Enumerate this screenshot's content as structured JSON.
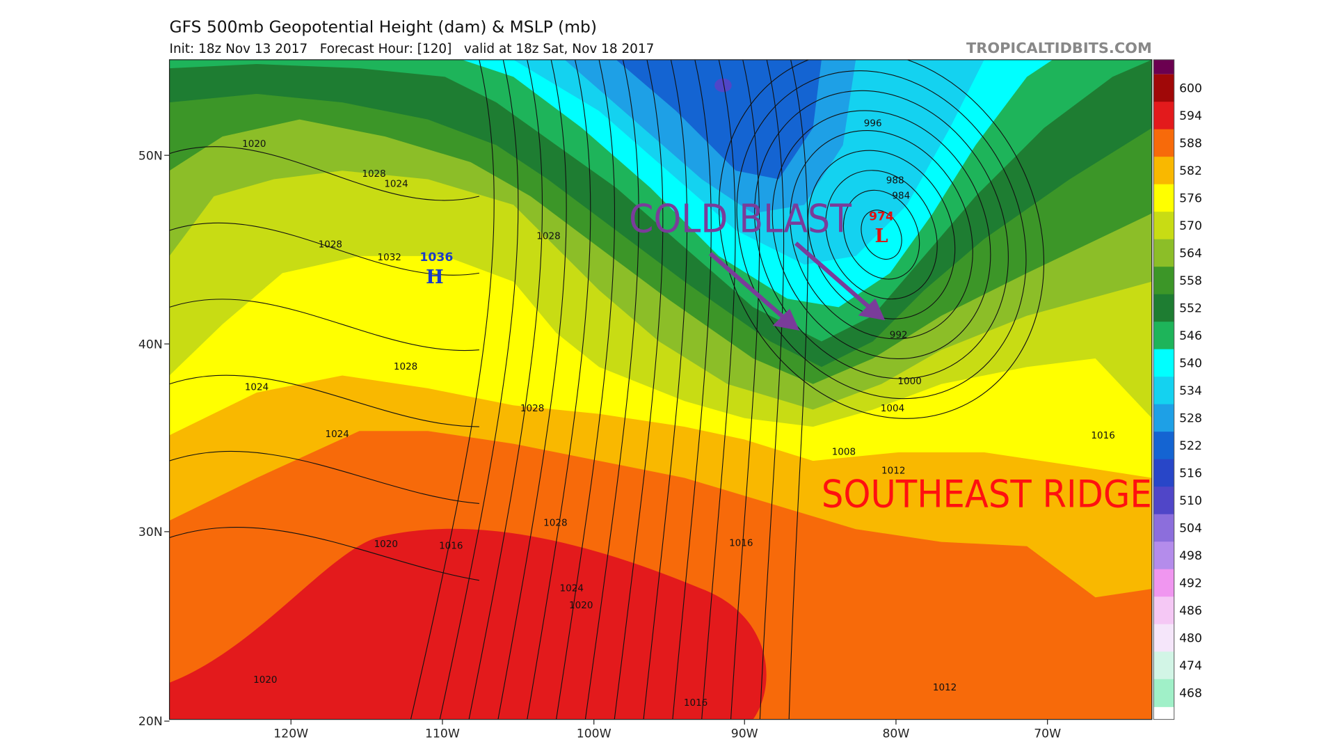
{
  "header": {
    "title": "GFS 500mb Geopotential Height (dam) & MSLP (mb)",
    "subtitle": "Init: 18z Nov 13 2017   Forecast Hour: [120]   valid at 18z Sat, Nov 18 2017",
    "credit": "TROPICALTIDBITS.COM"
  },
  "map": {
    "lat_labels": [
      "50N",
      "40N",
      "30N",
      "20N"
    ],
    "lon_labels": [
      "120W",
      "110W",
      "100W",
      "90W",
      "80W",
      "70W"
    ],
    "annotations": {
      "cold_blast": "COLD BLAST",
      "southeast_ridge": "SOUTHEAST RIDGE"
    },
    "low": {
      "pressure": "974",
      "symbol": "L"
    },
    "high": {
      "pressure": "1036",
      "symbol": "H"
    },
    "isobar_labels": [
      "1020",
      "1028",
      "1024",
      "1028",
      "1032",
      "1028",
      "1024",
      "1024",
      "1028",
      "1028",
      "1028",
      "1020",
      "1016",
      "1024",
      "1020",
      "1020",
      "1016",
      "1016",
      "996",
      "988",
      "984",
      "992",
      "1000",
      "1004",
      "1008",
      "1012",
      "1016",
      "1012"
    ]
  },
  "colorbar": {
    "levels": [
      {
        "label": "600",
        "color": "#a00808"
      },
      {
        "label": "594",
        "color": "#e31a1c"
      },
      {
        "label": "588",
        "color": "#f76a0a"
      },
      {
        "label": "582",
        "color": "#f9b800"
      },
      {
        "label": "576",
        "color": "#ffff00"
      },
      {
        "label": "570",
        "color": "#c8dc14"
      },
      {
        "label": "564",
        "color": "#8cbe28"
      },
      {
        "label": "558",
        "color": "#3c9628"
      },
      {
        "label": "552",
        "color": "#1e7d32"
      },
      {
        "label": "546",
        "color": "#1eb45a"
      },
      {
        "label": "540",
        "color": "#00ffff"
      },
      {
        "label": "534",
        "color": "#14d2f0"
      },
      {
        "label": "528",
        "color": "#1ea0e6"
      },
      {
        "label": "522",
        "color": "#1464d2"
      },
      {
        "label": "516",
        "color": "#2846c8"
      },
      {
        "label": "510",
        "color": "#5046c8"
      },
      {
        "label": "504",
        "color": "#8c6edc"
      },
      {
        "label": "498",
        "color": "#b48ceb"
      },
      {
        "label": "492",
        "color": "#f096f0"
      },
      {
        "label": "486",
        "color": "#f5c8f5"
      },
      {
        "label": "480",
        "color": "#f5e6fa"
      },
      {
        "label": "474",
        "color": "#d2f5e6"
      },
      {
        "label": "468",
        "color": "#a0f0c8"
      }
    ]
  }
}
